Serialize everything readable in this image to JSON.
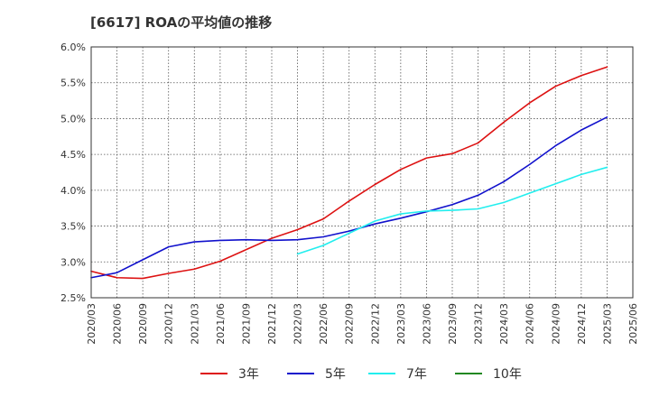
{
  "chart_data": {
    "type": "line",
    "title": "[6617]  ROAの平均値の推移",
    "xlabel": "",
    "ylabel": "",
    "ylim": [
      2.5,
      6.0
    ],
    "y_ticks": [
      "6.0%",
      "5.5%",
      "5.0%",
      "4.5%",
      "4.0%",
      "3.5%",
      "3.0%",
      "2.5%"
    ],
    "x_ticks": [
      "2020/03",
      "2020/06",
      "2020/09",
      "2020/12",
      "2021/03",
      "2021/06",
      "2021/09",
      "2021/12",
      "2022/03",
      "2022/06",
      "2022/09",
      "2022/12",
      "2023/03",
      "2023/06",
      "2023/09",
      "2023/12",
      "2024/03",
      "2024/06",
      "2024/09",
      "2024/12",
      "2025/03",
      "2025/06"
    ],
    "grid": true,
    "legend_position": "bottom",
    "series": [
      {
        "name": "3年",
        "color": "#dd1111",
        "x": [
          "2020/03",
          "2020/06",
          "2020/09",
          "2020/12",
          "2021/03",
          "2021/06",
          "2021/09",
          "2021/12",
          "2022/03",
          "2022/06",
          "2022/09",
          "2022/12",
          "2023/03",
          "2023/06",
          "2023/09",
          "2023/12",
          "2024/03",
          "2024/06",
          "2024/09",
          "2024/12",
          "2025/03"
        ],
        "values": [
          2.87,
          2.78,
          2.77,
          2.84,
          2.9,
          3.01,
          3.17,
          3.33,
          3.45,
          3.6,
          3.85,
          4.08,
          4.29,
          4.45,
          4.51,
          4.66,
          4.95,
          5.22,
          5.45,
          5.6,
          5.72
        ]
      },
      {
        "name": "5年",
        "color": "#1111cc",
        "x": [
          "2020/03",
          "2020/06",
          "2020/09",
          "2020/12",
          "2021/03",
          "2021/06",
          "2021/09",
          "2021/12",
          "2022/03",
          "2022/06",
          "2022/09",
          "2022/12",
          "2023/03",
          "2023/06",
          "2023/09",
          "2023/12",
          "2024/03",
          "2024/06",
          "2024/09",
          "2024/12",
          "2025/03"
        ],
        "values": [
          2.78,
          2.85,
          3.03,
          3.21,
          3.28,
          3.3,
          3.31,
          3.3,
          3.31,
          3.35,
          3.43,
          3.53,
          3.61,
          3.7,
          3.8,
          3.93,
          4.12,
          4.36,
          4.62,
          4.84,
          5.02
        ]
      },
      {
        "name": "7年",
        "color": "#22eeee",
        "x": [
          "2022/03",
          "2022/06",
          "2022/09",
          "2022/12",
          "2023/03",
          "2023/06",
          "2023/09",
          "2023/12",
          "2024/03",
          "2024/06",
          "2024/09",
          "2024/12",
          "2025/03"
        ],
        "values": [
          3.11,
          3.23,
          3.4,
          3.57,
          3.67,
          3.71,
          3.72,
          3.74,
          3.83,
          3.96,
          4.09,
          4.22,
          4.32
        ]
      },
      {
        "name": "10年",
        "color": "#228822",
        "x": [],
        "values": []
      }
    ]
  }
}
